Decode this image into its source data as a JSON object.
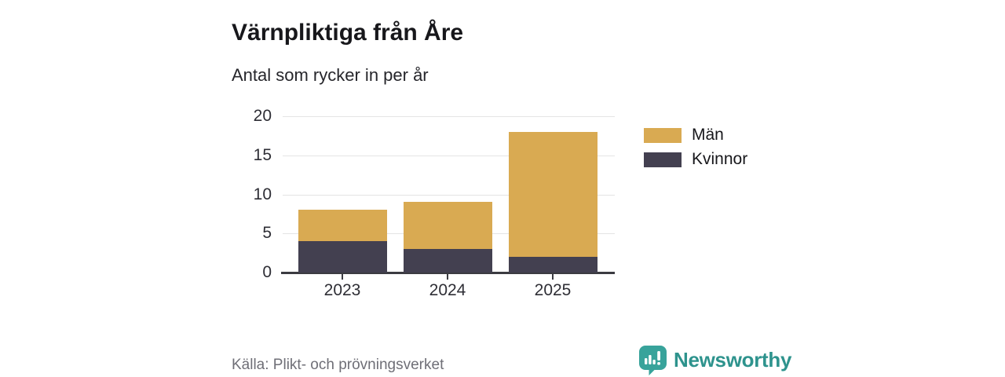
{
  "header": {
    "title": "Värnpliktiga från Åre",
    "subtitle": "Antal som rycker in per år"
  },
  "chart_data": {
    "type": "bar",
    "stacked": true,
    "title": "Värnpliktiga från Åre",
    "subtitle": "Antal som rycker in per år",
    "categories": [
      "2023",
      "2024",
      "2025"
    ],
    "series": [
      {
        "name": "Män",
        "color": "#D9AA52",
        "values": [
          4,
          6,
          16
        ]
      },
      {
        "name": "Kvinnor",
        "color": "#434050",
        "values": [
          4,
          3,
          2
        ]
      }
    ],
    "stack_order_bottom_up": [
      "Kvinnor",
      "Män"
    ],
    "totals": [
      8,
      9,
      18
    ],
    "y_ticks": [
      0,
      5,
      10,
      15,
      20
    ],
    "ylim": [
      0,
      20
    ],
    "xlabel": "",
    "ylabel": "",
    "grid": true,
    "legend_position": "right"
  },
  "footer": {
    "source": "Källa: Plikt- och prövningsverket",
    "brand": "Newsworthy"
  },
  "colors": {
    "men": "#D9AA52",
    "women": "#434050",
    "brand_teal": "#2E938D",
    "brand_icon_teal": "#38A39B",
    "grid": "#E4E4E4",
    "axis": "#3B3B41",
    "text": "#17171B",
    "muted": "#6F6F77"
  }
}
